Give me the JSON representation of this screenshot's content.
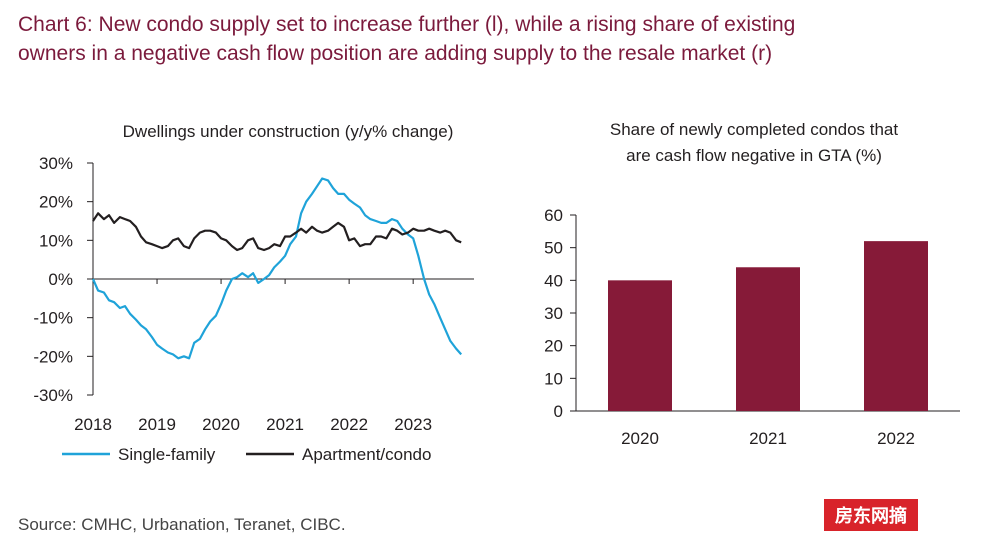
{
  "headline": {
    "line1": "Chart 6: New condo supply set to increase further (l), while a rising share of existing",
    "line2": "owners in a negative cash flow position are adding supply to the resale market (r)"
  },
  "source": "Source: CMHC, Urbanation, Teranet, CIBC.",
  "watermark": "房东网摘",
  "colors": {
    "headline": "#7b1a3c",
    "single_family": "#1fa3d9",
    "apartment": "#231f20",
    "bar": "#861a38"
  },
  "chart_data": [
    {
      "type": "line",
      "title": "Dwellings under construction (y/y% change)",
      "xlabel": "",
      "ylabel": "",
      "ylim": [
        -30,
        30
      ],
      "xlim": [
        2018.0,
        2023.95
      ],
      "y_ticks": [
        "30%",
        "20%",
        "10%",
        "0%",
        "-10%",
        "-20%",
        "-30%"
      ],
      "x_ticks": [
        "2018",
        "2019",
        "2020",
        "2021",
        "2022",
        "2023"
      ],
      "legend_position": "bottom",
      "series": [
        {
          "name": "Single-family",
          "x": [
            2018.0,
            2018.08,
            2018.17,
            2018.25,
            2018.33,
            2018.42,
            2018.5,
            2018.58,
            2018.67,
            2018.75,
            2018.83,
            2018.92,
            2019.0,
            2019.08,
            2019.17,
            2019.25,
            2019.33,
            2019.42,
            2019.5,
            2019.58,
            2019.67,
            2019.75,
            2019.83,
            2019.92,
            2020.0,
            2020.08,
            2020.17,
            2020.25,
            2020.33,
            2020.42,
            2020.5,
            2020.58,
            2020.67,
            2020.75,
            2020.83,
            2020.92,
            2021.0,
            2021.08,
            2021.17,
            2021.25,
            2021.33,
            2021.42,
            2021.5,
            2021.58,
            2021.67,
            2021.75,
            2021.83,
            2021.92,
            2022.0,
            2022.08,
            2022.17,
            2022.25,
            2022.33,
            2022.42,
            2022.5,
            2022.58,
            2022.67,
            2022.75,
            2022.83,
            2022.92,
            2023.0,
            2023.08,
            2023.17,
            2023.25,
            2023.33,
            2023.42,
            2023.5,
            2023.58,
            2023.67,
            2023.75
          ],
          "values": [
            0,
            -3,
            -3.5,
            -5.5,
            -6,
            -7.5,
            -7,
            -9,
            -10.5,
            -12,
            -13,
            -15,
            -17,
            -18,
            -19,
            -19.5,
            -20.5,
            -20,
            -20.5,
            -16.5,
            -15.5,
            -13,
            -11,
            -9.5,
            -6.5,
            -3,
            0,
            0.5,
            1.5,
            0.5,
            1.5,
            -1,
            0,
            1,
            3,
            4.5,
            6,
            9,
            11,
            17,
            20,
            22,
            24,
            26,
            25.5,
            23.5,
            22,
            22,
            20.5,
            19.5,
            18.5,
            16.5,
            15.5,
            15,
            14.5,
            14.5,
            15.5,
            15,
            13,
            11.5,
            10.5,
            6,
            0,
            -4,
            -6.5,
            -10,
            -13,
            -16,
            -18,
            -19.5
          ]
        },
        {
          "name": "Apartment/condo",
          "x": [
            2018.0,
            2018.08,
            2018.17,
            2018.25,
            2018.33,
            2018.42,
            2018.5,
            2018.58,
            2018.67,
            2018.75,
            2018.83,
            2018.92,
            2019.0,
            2019.08,
            2019.17,
            2019.25,
            2019.33,
            2019.42,
            2019.5,
            2019.58,
            2019.67,
            2019.75,
            2019.83,
            2019.92,
            2020.0,
            2020.08,
            2020.17,
            2020.25,
            2020.33,
            2020.42,
            2020.5,
            2020.58,
            2020.67,
            2020.75,
            2020.83,
            2020.92,
            2021.0,
            2021.08,
            2021.17,
            2021.25,
            2021.33,
            2021.42,
            2021.5,
            2021.58,
            2021.67,
            2021.75,
            2021.83,
            2021.92,
            2022.0,
            2022.08,
            2022.17,
            2022.25,
            2022.33,
            2022.42,
            2022.5,
            2022.58,
            2022.67,
            2022.75,
            2022.83,
            2022.92,
            2023.0,
            2023.08,
            2023.17,
            2023.25,
            2023.33,
            2023.42,
            2023.5,
            2023.58,
            2023.67,
            2023.75
          ],
          "values": [
            15,
            17,
            15.5,
            16.5,
            14.5,
            16,
            15.5,
            15,
            13.5,
            11,
            9.5,
            9,
            8.5,
            8,
            8.5,
            10,
            10.5,
            8.5,
            8,
            10.5,
            12,
            12.5,
            12.5,
            12,
            10.5,
            10,
            8.5,
            7.5,
            8,
            10,
            10.5,
            8,
            7.5,
            8,
            9,
            8.5,
            11,
            11,
            12,
            13,
            12,
            13.5,
            12.5,
            12,
            12.5,
            13.5,
            14.5,
            13.5,
            10,
            10.5,
            8.5,
            9,
            9,
            11,
            11,
            10.5,
            13,
            12.5,
            11.5,
            12,
            13,
            12.5,
            12.5,
            13,
            12.5,
            12,
            12.5,
            12,
            10,
            9.5
          ]
        }
      ]
    },
    {
      "type": "bar",
      "title": "Share of newly completed condos that are cash flow negative in GTA (%)",
      "title_lines": [
        "Share of newly completed condos that",
        "are cash flow negative in GTA (%)"
      ],
      "xlabel": "",
      "ylabel": "",
      "categories": [
        "2020",
        "2021",
        "2022"
      ],
      "values": [
        40,
        44,
        52
      ],
      "ylim": [
        0,
        60
      ],
      "y_ticks": [
        "60",
        "50",
        "40",
        "30",
        "20",
        "10",
        "0"
      ]
    }
  ]
}
